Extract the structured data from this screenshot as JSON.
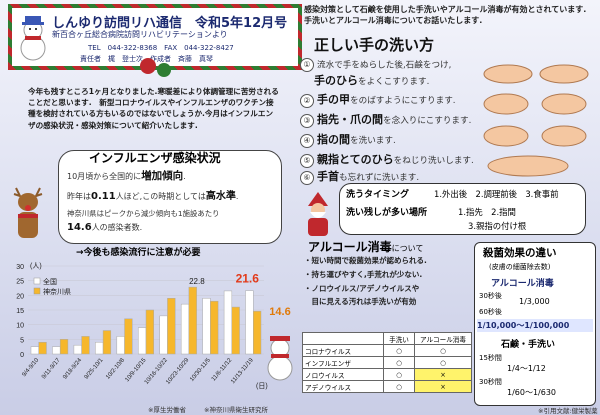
{
  "header": {
    "title": "しんゆり訪問リハ通信　令和5年12月号",
    "subtitle": "新百合ヶ丘総合病院訪問リハビリテーションより",
    "contact": "TEL　044-322-8368　FAX　044-322-8427",
    "authors": "責任者　梶　登士次　作成者　斉藤　真琴"
  },
  "intro": "今年も残すところ1ヶ月となりました.寒暖差により体調管理に苦労されることだと思います.　新型コロナウイルスやインフルエンザのワクチン接種を検討されている方もいるのではないでしょうか.今月はインフルエンザの感染状況・感染対策について紹介いたします.",
  "flu": {
    "title": "インフルエンザ感染状況",
    "l1a": "10月頃から全国的に",
    "l1b": "増加傾向",
    "l1c": ".",
    "l2a": "昨年は",
    "l2b": "0.11",
    "l2c": "人ほど,この時期としては",
    "l2d": "高水準",
    "l2e": ".",
    "l3": "神奈川県はピークから減少傾向も1施設あたり",
    "l4a": "14.6",
    "l4b": "人の感染者数.",
    "note": "→今後も感染流行に注意が必要"
  },
  "chart_data": {
    "type": "bar",
    "ylabel": "(人)",
    "xlabel": "(日)",
    "ylim": [
      0,
      30
    ],
    "yticks": [
      0,
      5,
      10,
      15,
      20,
      25,
      30
    ],
    "categories": [
      "9/4-9/10",
      "9/11-9/17",
      "9/18-9/24",
      "9/25-10/1",
      "10/2-10/8",
      "10/9-10/15",
      "10/16-10/22",
      "10/23-10/29",
      "10/30-11/5",
      "11/6-11/12",
      "11/13-11/19"
    ],
    "series": [
      {
        "name": "全国",
        "values": [
          2.5,
          2.5,
          3.0,
          4.0,
          6.0,
          9.0,
          13.0,
          17.0,
          19.0,
          21.5,
          21.6
        ],
        "color": "#ffffff"
      },
      {
        "name": "神奈川県",
        "values": [
          4.0,
          5.0,
          6.0,
          8.0,
          12.0,
          15.0,
          19.0,
          22.8,
          18.0,
          16.0,
          14.6
        ],
        "color": "#f6b72c"
      }
    ],
    "annotations": [
      "22.8",
      "21.6",
      "14.6"
    ],
    "sources": [
      "※厚生労働省",
      "※神奈川県衛生研究所"
    ]
  },
  "right": {
    "intro": "感染対策として石鹸を使用した手洗いやアルコール消毒が有効とされています.手洗いとアルコール消毒についてお話いたします.",
    "hw_title": "正しい手の洗い方",
    "steps": [
      {
        "n": "①",
        "text": "流水で手をぬらした後,石鹸をつけ,",
        "bold": ""
      },
      {
        "n": "",
        "text": "をよくこすります.",
        "bold": "手のひら"
      },
      {
        "n": "②",
        "text": "をのばすようにこすります.",
        "bold": "手の甲"
      },
      {
        "n": "③",
        "text": "を念入りにこすります.",
        "bold": "指先・爪の間"
      },
      {
        "n": "④",
        "text": "を洗います.",
        "bold": "指の間"
      },
      {
        "n": "⑤",
        "text": "をねじり洗いします.",
        "bold": "親指",
        "bold2": "とてのひら"
      },
      {
        "n": "⑥",
        "text": "も忘れずに洗います.",
        "bold": "手首"
      }
    ],
    "timing_label": "洗うタイミング",
    "timing": "1.外出後　2.調理前後　3.食事前",
    "miss_label": "洗い残しが多い場所",
    "miss1": "1.指先　2.指間",
    "miss2": "3.親指の付け根",
    "alc_title": "アルコール消毒",
    "alc_sub": "について",
    "alc1": "・短い時間で殺菌効果が認められる.",
    "alc2": "・持ち運びやすく,手荒れが少ない.",
    "alc3": "・ノロウイルス/アデノウイルスや",
    "alc4": "　目に見える汚れは手洗いが有効",
    "table": {
      "headers": [
        "",
        "手洗い",
        "アルコール消毒"
      ],
      "rows": [
        [
          "コロナウイルス",
          "○",
          "○"
        ],
        [
          "インフルエンザ",
          "○",
          "○"
        ],
        [
          "ノロウイルス",
          "○",
          "×"
        ],
        [
          "アデノウイルス",
          "○",
          "×"
        ]
      ]
    },
    "ster": {
      "title": "殺菌効果の違い",
      "sub": "(皮膚の細菌除去数)",
      "alc": "アルコール消毒",
      "t30": "30秒後",
      "v30": "1/3,000",
      "t60": "60秒後",
      "v60": "1/10,000～1/100,000",
      "soap": "石鹸・手洗い",
      "s15": "15秒間",
      "sv15": "1/4～1/12",
      "s30": "30秒間",
      "sv30": "1/60～1/630",
      "ref": "※引用文献:健栄製薬"
    }
  }
}
